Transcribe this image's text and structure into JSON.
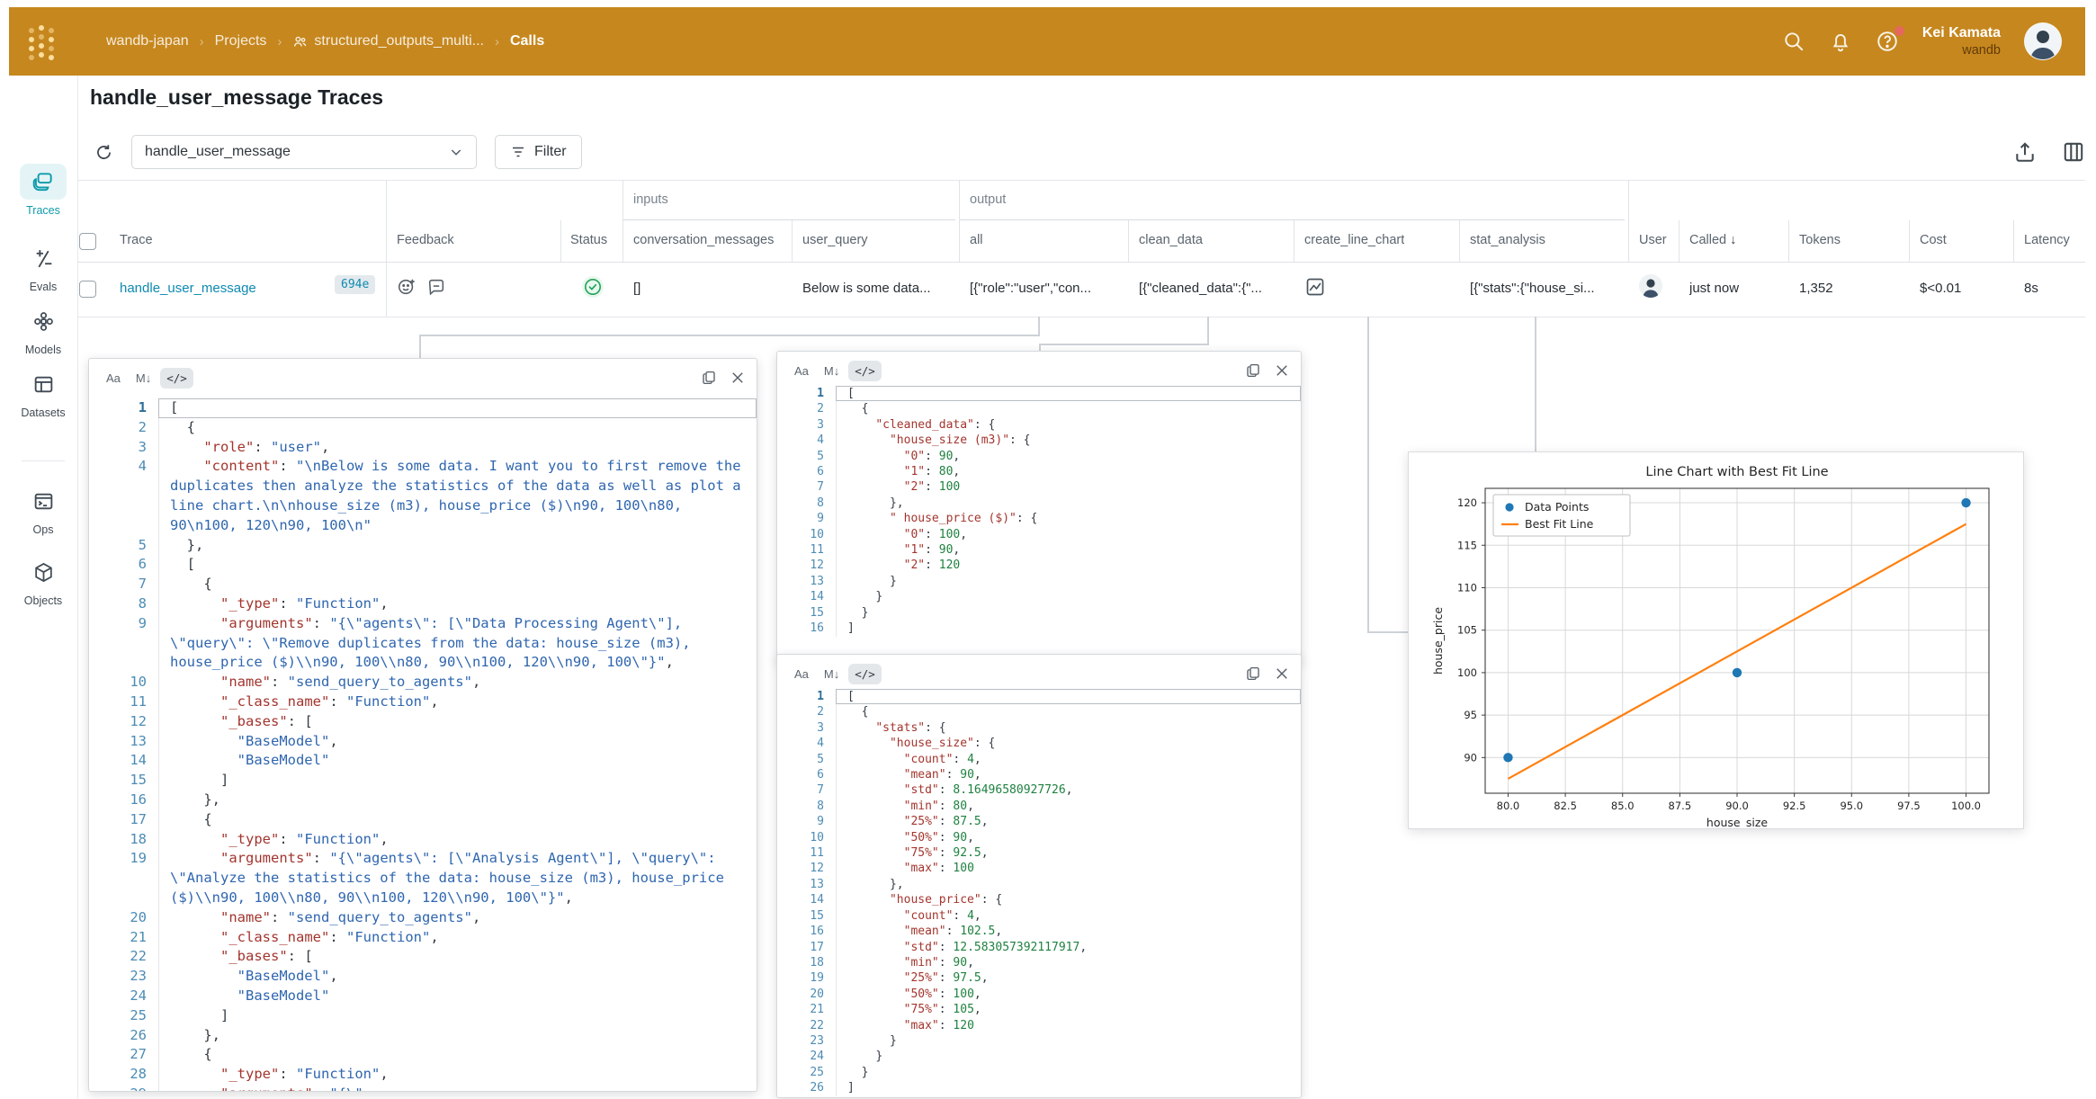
{
  "navbar": {
    "breadcrumb": [
      "wandb-japan",
      "Projects",
      "structured_outputs_multi...",
      "Calls"
    ],
    "user_name": "Kei Kamata",
    "user_org": "wandb"
  },
  "sidebar": {
    "items": [
      {
        "label": "Traces",
        "active": true
      },
      {
        "label": "Evals"
      },
      {
        "label": "Models"
      },
      {
        "label": "Datasets"
      },
      {
        "label": "Ops"
      },
      {
        "label": "Objects"
      }
    ]
  },
  "page": {
    "title": "handle_user_message Traces"
  },
  "toolbar": {
    "op_selector": "handle_user_message",
    "filter_label": "Filter"
  },
  "table": {
    "groups": {
      "inputs": "inputs",
      "output": "output"
    },
    "columns": [
      "Trace",
      "Feedback",
      "Status",
      "conversation_messages",
      "user_query",
      "all",
      "clean_data",
      "create_line_chart",
      "stat_analysis",
      "User",
      "Called",
      "Tokens",
      "Cost",
      "Latency"
    ],
    "row": {
      "trace": "handle_user_message",
      "badge": "694e",
      "conversation_messages": "[]",
      "user_query": "Below is some data...",
      "all": "[{\"role\":\"user\",\"con...",
      "clean_data": "[{\"cleaned_data\":{\"...",
      "stat_analysis": "[{\"stats\":{\"house_si...",
      "called": "just now",
      "tokens": "1,352",
      "cost": "$<0.01",
      "latency": "8s"
    }
  },
  "popup_toolbar": [
    "Aa",
    "M↓",
    "</>"
  ],
  "colors": {
    "navbar": "#C6871E",
    "sidebar_active": "#0E9BAB",
    "link": "#0E8AB0",
    "status_green": "#24A159",
    "json_key": "#A3352E",
    "json_string": "#2F66AF",
    "json_number": "#1F8140",
    "chart_point": "#1f77b4",
    "chart_line": "#ff7f0e"
  },
  "code_all": {
    "lines": [
      {
        "n": 1,
        "f": 1,
        "t": [
          [
            "p",
            "["
          ]
        ]
      },
      {
        "n": 2,
        "t": [
          [
            "p",
            "  {"
          ]
        ]
      },
      {
        "n": 3,
        "t": [
          [
            "k",
            "    \"role\""
          ],
          [
            "p",
            ": "
          ],
          [
            "s",
            "\"user\""
          ],
          [
            "p",
            ","
          ]
        ]
      },
      {
        "n": 4,
        "t": [
          [
            "k",
            "    \"content\""
          ],
          [
            "p",
            ": "
          ],
          [
            "s",
            "\"\\nBelow is some data. I want you to first remove the duplicates then analyze the statistics of the data as well as plot a line chart.\\n\\nhouse_size (m3), house_price ($)\\n90, 100\\n80, 90\\n100, 120\\n90, 100\\n\""
          ]
        ]
      },
      {
        "n": 5,
        "t": [
          [
            "p",
            "  },"
          ]
        ]
      },
      {
        "n": 6,
        "t": [
          [
            "p",
            "  ["
          ]
        ]
      },
      {
        "n": 7,
        "t": [
          [
            "p",
            "    {"
          ]
        ]
      },
      {
        "n": 8,
        "t": [
          [
            "k",
            "      \"_type\""
          ],
          [
            "p",
            ": "
          ],
          [
            "s",
            "\"Function\""
          ],
          [
            "p",
            ","
          ]
        ]
      },
      {
        "n": 9,
        "t": [
          [
            "k",
            "      \"arguments\""
          ],
          [
            "p",
            ": "
          ],
          [
            "s",
            "\"{\\\"agents\\\": [\\\"Data Processing Agent\\\"], \\\"query\\\": \\\"Remove duplicates from the data: house_size (m3), house_price ($)\\\\n90, 100\\\\n80, 90\\\\n100, 120\\\\n90, 100\\\"}\""
          ],
          [
            "p",
            ","
          ]
        ]
      },
      {
        "n": 10,
        "t": [
          [
            "k",
            "      \"name\""
          ],
          [
            "p",
            ": "
          ],
          [
            "s",
            "\"send_query_to_agents\""
          ],
          [
            "p",
            ","
          ]
        ]
      },
      {
        "n": 11,
        "t": [
          [
            "k",
            "      \"_class_name\""
          ],
          [
            "p",
            ": "
          ],
          [
            "s",
            "\"Function\""
          ],
          [
            "p",
            ","
          ]
        ]
      },
      {
        "n": 12,
        "t": [
          [
            "k",
            "      \"_bases\""
          ],
          [
            "p",
            ": ["
          ]
        ]
      },
      {
        "n": 13,
        "t": [
          [
            "s",
            "        \"BaseModel\""
          ],
          [
            "p",
            ","
          ]
        ]
      },
      {
        "n": 14,
        "t": [
          [
            "s",
            "        \"BaseModel\""
          ]
        ]
      },
      {
        "n": 15,
        "t": [
          [
            "p",
            "      ]"
          ]
        ]
      },
      {
        "n": 16,
        "t": [
          [
            "p",
            "    },"
          ]
        ]
      },
      {
        "n": 17,
        "t": [
          [
            "p",
            "    {"
          ]
        ]
      },
      {
        "n": 18,
        "t": [
          [
            "k",
            "      \"_type\""
          ],
          [
            "p",
            ": "
          ],
          [
            "s",
            "\"Function\""
          ],
          [
            "p",
            ","
          ]
        ]
      },
      {
        "n": 19,
        "t": [
          [
            "k",
            "      \"arguments\""
          ],
          [
            "p",
            ": "
          ],
          [
            "s",
            "\"{\\\"agents\\\": [\\\"Analysis Agent\\\"], \\\"query\\\": \\\"Analyze the statistics of the data: house_size (m3), house_price ($)\\\\n90, 100\\\\n80, 90\\\\n100, 120\\\\n90, 100\\\"}\""
          ],
          [
            "p",
            ","
          ]
        ]
      },
      {
        "n": 20,
        "t": [
          [
            "k",
            "      \"name\""
          ],
          [
            "p",
            ": "
          ],
          [
            "s",
            "\"send_query_to_agents\""
          ],
          [
            "p",
            ","
          ]
        ]
      },
      {
        "n": 21,
        "t": [
          [
            "k",
            "      \"_class_name\""
          ],
          [
            "p",
            ": "
          ],
          [
            "s",
            "\"Function\""
          ],
          [
            "p",
            ","
          ]
        ]
      },
      {
        "n": 22,
        "t": [
          [
            "k",
            "      \"_bases\""
          ],
          [
            "p",
            ": ["
          ]
        ]
      },
      {
        "n": 23,
        "t": [
          [
            "s",
            "        \"BaseModel\""
          ],
          [
            "p",
            ","
          ]
        ]
      },
      {
        "n": 24,
        "t": [
          [
            "s",
            "        \"BaseModel\""
          ]
        ]
      },
      {
        "n": 25,
        "t": [
          [
            "p",
            "      ]"
          ]
        ]
      },
      {
        "n": 26,
        "t": [
          [
            "p",
            "    },"
          ]
        ]
      },
      {
        "n": 27,
        "t": [
          [
            "p",
            "    {"
          ]
        ]
      },
      {
        "n": 28,
        "t": [
          [
            "k",
            "      \"_type\""
          ],
          [
            "p",
            ": "
          ],
          [
            "s",
            "\"Function\""
          ],
          [
            "p",
            ","
          ]
        ]
      },
      {
        "n": 29,
        "t": [
          [
            "k",
            "      \"arguments\""
          ],
          [
            "p",
            ": "
          ],
          [
            "s",
            "\"{\\\""
          ]
        ]
      }
    ]
  },
  "code_clean": {
    "lines": [
      {
        "n": 1,
        "f": 1,
        "t": [
          [
            "p",
            "["
          ]
        ]
      },
      {
        "n": 2,
        "t": [
          [
            "p",
            "  {"
          ]
        ]
      },
      {
        "n": 3,
        "t": [
          [
            "k",
            "    \"cleaned_data\""
          ],
          [
            "p",
            ": {"
          ]
        ]
      },
      {
        "n": 4,
        "t": [
          [
            "k",
            "      \"house_size (m3)\""
          ],
          [
            "p",
            ": {"
          ]
        ]
      },
      {
        "n": 5,
        "t": [
          [
            "k",
            "        \"0\""
          ],
          [
            "p",
            ": "
          ],
          [
            "n",
            "90"
          ],
          [
            "p",
            ","
          ]
        ]
      },
      {
        "n": 6,
        "t": [
          [
            "k",
            "        \"1\""
          ],
          [
            "p",
            ": "
          ],
          [
            "n",
            "80"
          ],
          [
            "p",
            ","
          ]
        ]
      },
      {
        "n": 7,
        "t": [
          [
            "k",
            "        \"2\""
          ],
          [
            "p",
            ": "
          ],
          [
            "n",
            "100"
          ]
        ]
      },
      {
        "n": 8,
        "t": [
          [
            "p",
            "      },"
          ]
        ]
      },
      {
        "n": 9,
        "t": [
          [
            "k",
            "      \" house_price ($)\""
          ],
          [
            "p",
            ": {"
          ]
        ]
      },
      {
        "n": 10,
        "t": [
          [
            "k",
            "        \"0\""
          ],
          [
            "p",
            ": "
          ],
          [
            "n",
            "100"
          ],
          [
            "p",
            ","
          ]
        ]
      },
      {
        "n": 11,
        "t": [
          [
            "k",
            "        \"1\""
          ],
          [
            "p",
            ": "
          ],
          [
            "n",
            "90"
          ],
          [
            "p",
            ","
          ]
        ]
      },
      {
        "n": 12,
        "t": [
          [
            "k",
            "        \"2\""
          ],
          [
            "p",
            ": "
          ],
          [
            "n",
            "120"
          ]
        ]
      },
      {
        "n": 13,
        "t": [
          [
            "p",
            "      }"
          ]
        ]
      },
      {
        "n": 14,
        "t": [
          [
            "p",
            "    }"
          ]
        ]
      },
      {
        "n": 15,
        "t": [
          [
            "p",
            "  }"
          ]
        ]
      },
      {
        "n": 16,
        "t": [
          [
            "p",
            "]"
          ]
        ]
      }
    ]
  },
  "code_stats": {
    "lines": [
      {
        "n": 1,
        "f": 1,
        "t": [
          [
            "p",
            "["
          ]
        ]
      },
      {
        "n": 2,
        "t": [
          [
            "p",
            "  {"
          ]
        ]
      },
      {
        "n": 3,
        "t": [
          [
            "k",
            "    \"stats\""
          ],
          [
            "p",
            ": {"
          ]
        ]
      },
      {
        "n": 4,
        "t": [
          [
            "k",
            "      \"house_size\""
          ],
          [
            "p",
            ": {"
          ]
        ]
      },
      {
        "n": 5,
        "t": [
          [
            "k",
            "        \"count\""
          ],
          [
            "p",
            ": "
          ],
          [
            "n",
            "4"
          ],
          [
            "p",
            ","
          ]
        ]
      },
      {
        "n": 6,
        "t": [
          [
            "k",
            "        \"mean\""
          ],
          [
            "p",
            ": "
          ],
          [
            "n",
            "90"
          ],
          [
            "p",
            ","
          ]
        ]
      },
      {
        "n": 7,
        "t": [
          [
            "k",
            "        \"std\""
          ],
          [
            "p",
            ": "
          ],
          [
            "n",
            "8.16496580927726"
          ],
          [
            "p",
            ","
          ]
        ]
      },
      {
        "n": 8,
        "t": [
          [
            "k",
            "        \"min\""
          ],
          [
            "p",
            ": "
          ],
          [
            "n",
            "80"
          ],
          [
            "p",
            ","
          ]
        ]
      },
      {
        "n": 9,
        "t": [
          [
            "k",
            "        \"25%\""
          ],
          [
            "p",
            ": "
          ],
          [
            "n",
            "87.5"
          ],
          [
            "p",
            ","
          ]
        ]
      },
      {
        "n": 10,
        "t": [
          [
            "k",
            "        \"50%\""
          ],
          [
            "p",
            ": "
          ],
          [
            "n",
            "90"
          ],
          [
            "p",
            ","
          ]
        ]
      },
      {
        "n": 11,
        "t": [
          [
            "k",
            "        \"75%\""
          ],
          [
            "p",
            ": "
          ],
          [
            "n",
            "92.5"
          ],
          [
            "p",
            ","
          ]
        ]
      },
      {
        "n": 12,
        "t": [
          [
            "k",
            "        \"max\""
          ],
          [
            "p",
            ": "
          ],
          [
            "n",
            "100"
          ]
        ]
      },
      {
        "n": 13,
        "t": [
          [
            "p",
            "      },"
          ]
        ]
      },
      {
        "n": 14,
        "t": [
          [
            "k",
            "      \"house_price\""
          ],
          [
            "p",
            ": {"
          ]
        ]
      },
      {
        "n": 15,
        "t": [
          [
            "k",
            "        \"count\""
          ],
          [
            "p",
            ": "
          ],
          [
            "n",
            "4"
          ],
          [
            "p",
            ","
          ]
        ]
      },
      {
        "n": 16,
        "t": [
          [
            "k",
            "        \"mean\""
          ],
          [
            "p",
            ": "
          ],
          [
            "n",
            "102.5"
          ],
          [
            "p",
            ","
          ]
        ]
      },
      {
        "n": 17,
        "t": [
          [
            "k",
            "        \"std\""
          ],
          [
            "p",
            ": "
          ],
          [
            "n",
            "12.583057392117917"
          ],
          [
            "p",
            ","
          ]
        ]
      },
      {
        "n": 18,
        "t": [
          [
            "k",
            "        \"min\""
          ],
          [
            "p",
            ": "
          ],
          [
            "n",
            "90"
          ],
          [
            "p",
            ","
          ]
        ]
      },
      {
        "n": 19,
        "t": [
          [
            "k",
            "        \"25%\""
          ],
          [
            "p",
            ": "
          ],
          [
            "n",
            "97.5"
          ],
          [
            "p",
            ","
          ]
        ]
      },
      {
        "n": 20,
        "t": [
          [
            "k",
            "        \"50%\""
          ],
          [
            "p",
            ": "
          ],
          [
            "n",
            "100"
          ],
          [
            "p",
            ","
          ]
        ]
      },
      {
        "n": 21,
        "t": [
          [
            "k",
            "        \"75%\""
          ],
          [
            "p",
            ": "
          ],
          [
            "n",
            "105"
          ],
          [
            "p",
            ","
          ]
        ]
      },
      {
        "n": 22,
        "t": [
          [
            "k",
            "        \"max\""
          ],
          [
            "p",
            ": "
          ],
          [
            "n",
            "120"
          ]
        ]
      },
      {
        "n": 23,
        "t": [
          [
            "p",
            "      }"
          ]
        ]
      },
      {
        "n": 24,
        "t": [
          [
            "p",
            "    }"
          ]
        ]
      },
      {
        "n": 25,
        "t": [
          [
            "p",
            "  }"
          ]
        ]
      },
      {
        "n": 26,
        "t": [
          [
            "p",
            "]"
          ]
        ]
      }
    ]
  },
  "chart_data": {
    "type": "scatter",
    "title": "Line Chart with Best Fit Line",
    "xlabel": "house_size",
    "ylabel": "house_price",
    "xlim": [
      79,
      101
    ],
    "ylim": [
      85.8,
      121.7
    ],
    "xticks": [
      80.0,
      82.5,
      85.0,
      87.5,
      90.0,
      92.5,
      95.0,
      97.5,
      100.0
    ],
    "xtick_labels": [
      "80.0",
      "82.5",
      "85.0",
      "87.5",
      "90.0",
      "92.5",
      "95.0",
      "97.5",
      "100.0"
    ],
    "yticks": [
      90,
      95,
      100,
      105,
      110,
      115,
      120
    ],
    "ytick_labels": [
      "90",
      "95",
      "100",
      "105",
      "110",
      "115",
      "120"
    ],
    "grid": true,
    "legend_position": "upper-left",
    "series": [
      {
        "name": "Data Points",
        "type": "scatter",
        "color": "#1f77b4",
        "points": [
          [
            80,
            90
          ],
          [
            90,
            100
          ],
          [
            100,
            120
          ]
        ]
      },
      {
        "name": "Best Fit Line",
        "type": "line",
        "color": "#ff7f0e",
        "points": [
          [
            80,
            87.5
          ],
          [
            100,
            117.5
          ]
        ]
      }
    ]
  }
}
